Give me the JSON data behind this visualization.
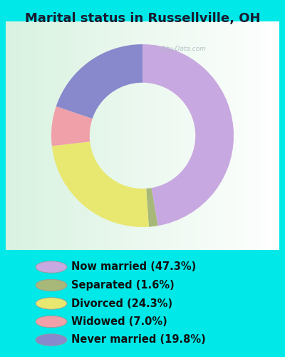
{
  "title": "Marital status in Russellville, OH",
  "categories": [
    "Now married",
    "Separated",
    "Divorced",
    "Widowed",
    "Never married"
  ],
  "values": [
    47.3,
    1.6,
    24.3,
    7.0,
    19.8
  ],
  "colors": [
    "#c8a8e0",
    "#a8b878",
    "#e8e870",
    "#f0a0a8",
    "#8888cc"
  ],
  "legend_labels": [
    "Now married (47.3%)",
    "Separated (1.6%)",
    "Divorced (24.3%)",
    "Widowed (7.0%)",
    "Never married (19.8%)"
  ],
  "bg_cyan": "#00e8e8",
  "title_fontsize": 13,
  "legend_fontsize": 10.5,
  "watermark": "City-Data.com",
  "donut_width": 0.42,
  "start_angle": 90
}
